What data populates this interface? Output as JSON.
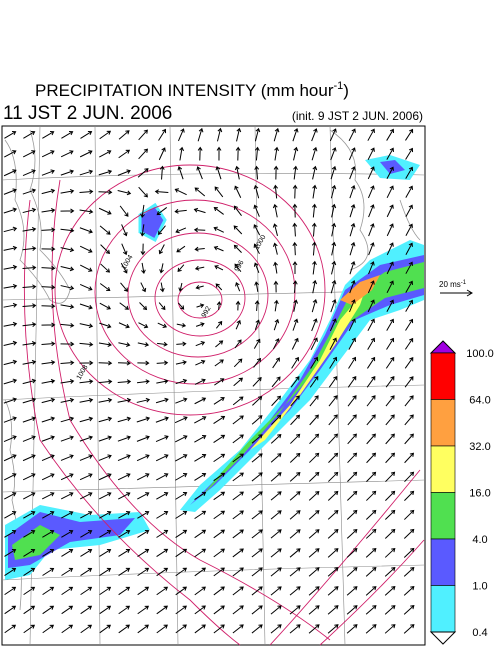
{
  "title": {
    "main": "PRECIPITATION INTENSITY (mm hour",
    "sup": "-1",
    "end": ")"
  },
  "valid_time": "11 JST 2 JUN. 2006",
  "init_time": "(init. 9 JST 2 JUN. 2006)",
  "wind_scale": {
    "text": "20 ms",
    "sup": "-1"
  },
  "colorbar": {
    "levels": [
      {
        "value": 100,
        "label": "100.0"
      },
      {
        "value": 64,
        "label": "64.0"
      },
      {
        "value": 32,
        "label": "32.0"
      },
      {
        "value": 16,
        "label": "16.0"
      },
      {
        "value": 4,
        "label": "4.0"
      },
      {
        "value": 1,
        "label": "1.0"
      },
      {
        "value": 0.4,
        "label": "0.4"
      }
    ],
    "colors": [
      "#ff0000",
      "#ffa040",
      "#ffff60",
      "#50e050",
      "#5a5aff",
      "#50f0ff"
    ],
    "over_color": "#a000e0",
    "under_color": "#ffffff"
  },
  "isobar_labels": [
    "992",
    "996",
    "1000",
    "1004",
    "1008"
  ]
}
